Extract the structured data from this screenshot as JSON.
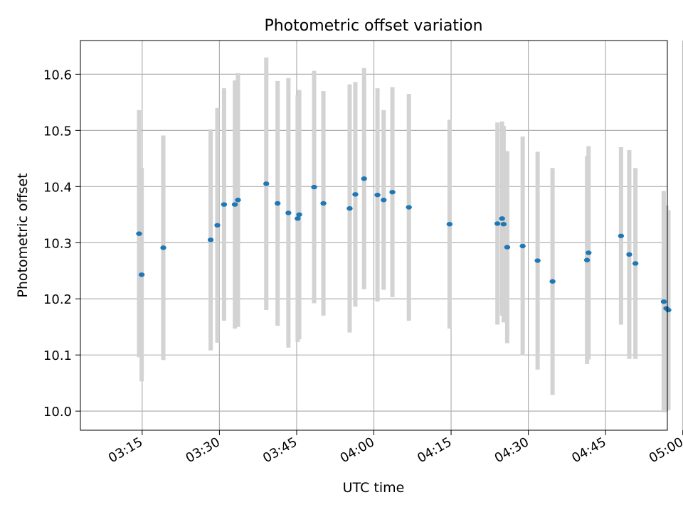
{
  "chart_data": {
    "type": "scatter",
    "title": "Photometric offset variation",
    "xlabel": "UTC time",
    "ylabel": "Photometric offset",
    "grid": true,
    "xlim_minutes": [
      3.0,
      117.0
    ],
    "ylim": [
      9.966,
      10.66
    ],
    "x_ticks": [
      {
        "label": "03:15",
        "value": 15
      },
      {
        "label": "03:30",
        "value": 30
      },
      {
        "label": "03:45",
        "value": 45
      },
      {
        "label": "04:00",
        "value": 60
      },
      {
        "label": "04:15",
        "value": 75
      },
      {
        "label": "04:30",
        "value": 90
      },
      {
        "label": "04:45",
        "value": 105
      },
      {
        "label": "05:00",
        "value": 120
      }
    ],
    "y_ticks": [
      {
        "label": "10.0",
        "value": 10.0
      },
      {
        "label": "10.1",
        "value": 10.1
      },
      {
        "label": "10.2",
        "value": 10.2
      },
      {
        "label": "10.3",
        "value": 10.3
      },
      {
        "label": "10.4",
        "value": 10.4
      },
      {
        "label": "10.5",
        "value": 10.5
      },
      {
        "label": "10.6",
        "value": 10.6
      }
    ],
    "x_unit_note": "minutes after 03:00 UTC",
    "point_color": "#1f77b4",
    "errorbar_color": "#d3d3d3",
    "grid_color": "#b0b0b0",
    "points": [
      {
        "t": 14.4,
        "y": 10.316,
        "err": 0.22
      },
      {
        "t": 14.9,
        "y": 10.243,
        "err": 0.19
      },
      {
        "t": 19.1,
        "y": 10.291,
        "err": 0.2
      },
      {
        "t": 28.3,
        "y": 10.305,
        "err": 0.197
      },
      {
        "t": 29.6,
        "y": 10.331,
        "err": 0.209
      },
      {
        "t": 30.9,
        "y": 10.368,
        "err": 0.207
      },
      {
        "t": 33.0,
        "y": 10.368,
        "err": 0.221
      },
      {
        "t": 33.6,
        "y": 10.376,
        "err": 0.226
      },
      {
        "t": 39.1,
        "y": 10.405,
        "err": 0.225
      },
      {
        "t": 41.3,
        "y": 10.37,
        "err": 0.218
      },
      {
        "t": 43.4,
        "y": 10.353,
        "err": 0.24
      },
      {
        "t": 45.2,
        "y": 10.343,
        "err": 0.22
      },
      {
        "t": 45.5,
        "y": 10.35,
        "err": 0.222
      },
      {
        "t": 48.4,
        "y": 10.399,
        "err": 0.207
      },
      {
        "t": 50.2,
        "y": 10.37,
        "err": 0.2
      },
      {
        "t": 55.3,
        "y": 10.361,
        "err": 0.221
      },
      {
        "t": 56.4,
        "y": 10.386,
        "err": 0.2
      },
      {
        "t": 58.1,
        "y": 10.414,
        "err": 0.197
      },
      {
        "t": 60.7,
        "y": 10.385,
        "err": 0.19
      },
      {
        "t": 61.9,
        "y": 10.376,
        "err": 0.16
      },
      {
        "t": 63.6,
        "y": 10.39,
        "err": 0.187
      },
      {
        "t": 66.8,
        "y": 10.363,
        "err": 0.202
      },
      {
        "t": 74.7,
        "y": 10.333,
        "err": 0.186
      },
      {
        "t": 84.0,
        "y": 10.334,
        "err": 0.18
      },
      {
        "t": 84.9,
        "y": 10.343,
        "err": 0.173
      },
      {
        "t": 85.2,
        "y": 10.333,
        "err": 0.175
      },
      {
        "t": 85.9,
        "y": 10.292,
        "err": 0.171
      },
      {
        "t": 88.9,
        "y": 10.294,
        "err": 0.195
      },
      {
        "t": 91.8,
        "y": 10.268,
        "err": 0.194
      },
      {
        "t": 94.7,
        "y": 10.231,
        "err": 0.202
      },
      {
        "t": 101.4,
        "y": 10.269,
        "err": 0.185
      },
      {
        "t": 101.7,
        "y": 10.282,
        "err": 0.19
      },
      {
        "t": 108.0,
        "y": 10.312,
        "err": 0.158
      },
      {
        "t": 109.6,
        "y": 10.279,
        "err": 0.186
      },
      {
        "t": 110.8,
        "y": 10.263,
        "err": 0.17
      },
      {
        "t": 116.3,
        "y": 10.195,
        "err": 0.197
      },
      {
        "t": 116.8,
        "y": 10.183,
        "err": 0.183
      },
      {
        "t": 117.2,
        "y": 10.18,
        "err": 0.178
      }
    ]
  }
}
